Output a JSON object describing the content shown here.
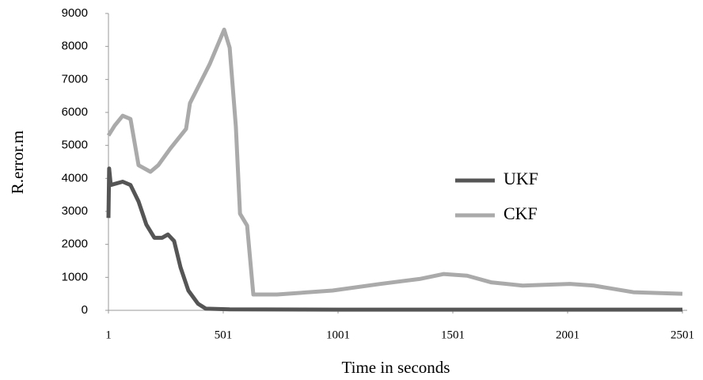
{
  "chart_data": {
    "type": "line",
    "x_label": "Time in seconds",
    "y_label": "R.error.m",
    "xlim": [
      1,
      2501
    ],
    "xticks": [
      1,
      501,
      1001,
      1501,
      2001,
      2501
    ],
    "ylim": [
      0,
      9000
    ],
    "yticks": [
      0,
      1000,
      2000,
      3000,
      4000,
      5000,
      6000,
      7000,
      8000,
      9000
    ],
    "series": [
      {
        "name": "UKF",
        "color": "#555555",
        "x": [
          1,
          4,
          11,
          63,
          97,
          132,
          166,
          201,
          235,
          260,
          287,
          315,
          349,
          391,
          425,
          529,
          1001,
          1501,
          2001,
          2501
        ],
        "values": [
          2800,
          4300,
          3800,
          3900,
          3800,
          3300,
          2600,
          2200,
          2200,
          2300,
          2100,
          1300,
          600,
          200,
          50,
          30,
          20,
          20,
          20,
          20
        ]
      },
      {
        "name": "CKF",
        "color": "#aaaaaa",
        "x": [
          1,
          28,
          63,
          97,
          132,
          184,
          218,
          270,
          339,
          356,
          443,
          505,
          529,
          556,
          574,
          605,
          632,
          735,
          977,
          1184,
          1356,
          1460,
          1563,
          1667,
          1805,
          2011,
          2115,
          2287,
          2501
        ],
        "values": [
          5300,
          5600,
          5900,
          5800,
          4400,
          4200,
          4400,
          4900,
          5500,
          6280,
          7480,
          8510,
          7960,
          5560,
          2930,
          2570,
          480,
          480,
          600,
          800,
          950,
          1100,
          1050,
          850,
          750,
          800,
          750,
          550,
          500
        ]
      }
    ]
  }
}
